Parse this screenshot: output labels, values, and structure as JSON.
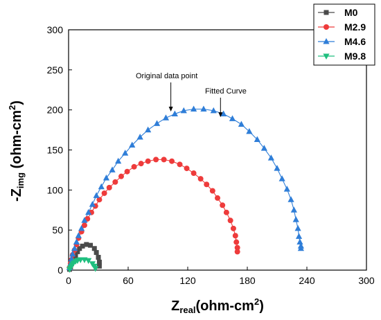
{
  "chart_data": {
    "type": "scatter",
    "xlim": [
      0,
      300
    ],
    "ylim": [
      0,
      300
    ],
    "x_ticks": [
      0,
      60,
      120,
      180,
      240,
      300
    ],
    "y_ticks": [
      0,
      50,
      100,
      150,
      200,
      250,
      300
    ],
    "x_tick_labels": [
      "0",
      "60",
      "120",
      "180",
      "240",
      "300"
    ],
    "y_tick_labels": [
      "0",
      "50",
      "100",
      "150",
      "200",
      "250",
      "300"
    ],
    "xlabel": {
      "main": "Z",
      "sub": "real",
      "unit": "(ohm-cm",
      "sup": "2",
      "close": ")"
    },
    "ylabel": {
      "main": "-Z",
      "sub": "img",
      "unit": " (ohm-cm",
      "sup": "2",
      "close": ")"
    },
    "grid": false,
    "legend_position": "top-right",
    "annotations": [
      {
        "text": "Original data point",
        "arrow_to": [
          103,
          198
        ]
      },
      {
        "text": "Fitted Curve",
        "arrow_to": [
          153,
          191
        ]
      }
    ],
    "series": [
      {
        "name": "M0",
        "marker": "square",
        "color": "#4a4a4a",
        "points": [
          [
            1,
            1
          ],
          [
            2,
            4
          ],
          [
            3,
            8
          ],
          [
            4,
            11
          ],
          [
            5,
            14
          ],
          [
            7,
            18
          ],
          [
            9,
            23
          ],
          [
            11,
            27
          ],
          [
            14,
            30
          ],
          [
            18,
            32
          ],
          [
            22,
            31
          ],
          [
            26,
            27
          ],
          [
            28,
            22
          ],
          [
            30,
            16
          ],
          [
            31,
            10
          ],
          [
            31,
            5
          ]
        ]
      },
      {
        "name": "M2.9",
        "marker": "circle",
        "color": "#ee3b3b",
        "points": [
          [
            1,
            3
          ],
          [
            2,
            8
          ],
          [
            3,
            13
          ],
          [
            4,
            19
          ],
          [
            6,
            25
          ],
          [
            8,
            32
          ],
          [
            10,
            40
          ],
          [
            13,
            48
          ],
          [
            16,
            56
          ],
          [
            19,
            64
          ],
          [
            23,
            72
          ],
          [
            27,
            80
          ],
          [
            31,
            88
          ],
          [
            36,
            96
          ],
          [
            41,
            103
          ],
          [
            47,
            110
          ],
          [
            53,
            117
          ],
          [
            59,
            123
          ],
          [
            66,
            129
          ],
          [
            73,
            133
          ],
          [
            80,
            136
          ],
          [
            88,
            138
          ],
          [
            96,
            138
          ],
          [
            104,
            136
          ],
          [
            112,
            132
          ],
          [
            119,
            127
          ],
          [
            126,
            121
          ],
          [
            133,
            114
          ],
          [
            139,
            107
          ],
          [
            145,
            99
          ],
          [
            150,
            90
          ],
          [
            155,
            81
          ],
          [
            159,
            72
          ],
          [
            163,
            62
          ],
          [
            166,
            52
          ],
          [
            168,
            43
          ],
          [
            169,
            35
          ],
          [
            170,
            28
          ],
          [
            170,
            23
          ]
        ]
      },
      {
        "name": "M4.6",
        "marker": "triangle-up",
        "color": "#2f7ed8",
        "points": [
          [
            1,
            3
          ],
          [
            2,
            8
          ],
          [
            3,
            14
          ],
          [
            4,
            20
          ],
          [
            6,
            27
          ],
          [
            8,
            35
          ],
          [
            10,
            43
          ],
          [
            13,
            52
          ],
          [
            16,
            62
          ],
          [
            20,
            72
          ],
          [
            24,
            82
          ],
          [
            28,
            93
          ],
          [
            33,
            104
          ],
          [
            38,
            115
          ],
          [
            44,
            125
          ],
          [
            50,
            136
          ],
          [
            57,
            146
          ],
          [
            64,
            156
          ],
          [
            72,
            166
          ],
          [
            80,
            175
          ],
          [
            89,
            183
          ],
          [
            98,
            190
          ],
          [
            107,
            195
          ],
          [
            116,
            199
          ],
          [
            126,
            201
          ],
          [
            136,
            201
          ],
          [
            146,
            199
          ],
          [
            156,
            195
          ],
          [
            165,
            189
          ],
          [
            174,
            182
          ],
          [
            182,
            173
          ],
          [
            190,
            163
          ],
          [
            197,
            152
          ],
          [
            204,
            140
          ],
          [
            210,
            127
          ],
          [
            215,
            114
          ],
          [
            220,
            101
          ],
          [
            224,
            88
          ],
          [
            227,
            75
          ],
          [
            229,
            63
          ],
          [
            231,
            52
          ],
          [
            232,
            42
          ],
          [
            233,
            35
          ],
          [
            234,
            30
          ],
          [
            234,
            27
          ]
        ]
      },
      {
        "name": "M9.8",
        "marker": "triangle-down",
        "color": "#1fbf7f",
        "points": [
          [
            1,
            1
          ],
          [
            2,
            3
          ],
          [
            3,
            5
          ],
          [
            4,
            7
          ],
          [
            5,
            9
          ],
          [
            7,
            11
          ],
          [
            9,
            12
          ],
          [
            12,
            13
          ],
          [
            16,
            13
          ],
          [
            20,
            12
          ],
          [
            24,
            8
          ],
          [
            26,
            5
          ],
          [
            27,
            2
          ]
        ]
      }
    ]
  }
}
